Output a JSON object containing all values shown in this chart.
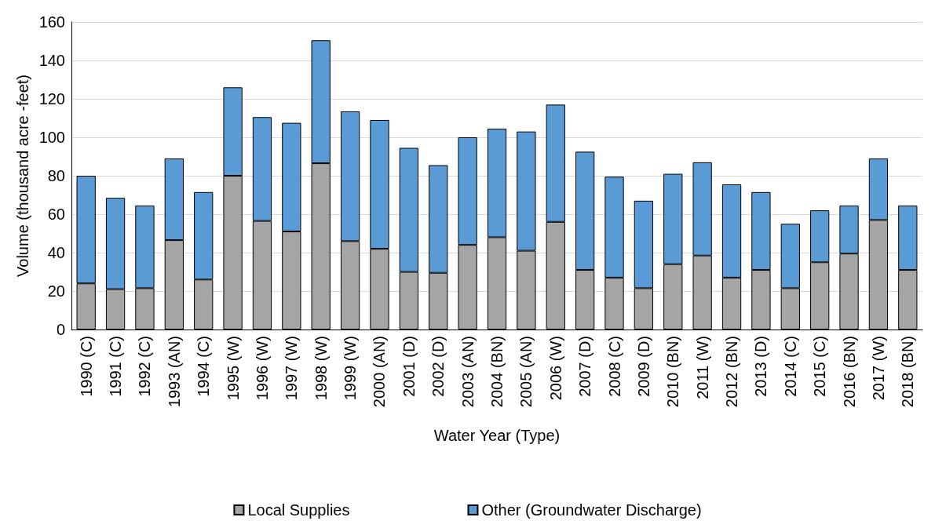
{
  "chart_data": {
    "type": "bar",
    "stacked": true,
    "xlabel": "Water Year (Type)",
    "ylabel": "Volume (thousand acre -feet)",
    "categories": [
      "1990 (C)",
      "1991 (C)",
      "1992 (C)",
      "1993 (AN)",
      "1994 (C)",
      "1995 (W)",
      "1996 (W)",
      "1997 (W)",
      "1998 (W)",
      "1999 (W)",
      "2000 (AN)",
      "2001 (D)",
      "2002 (D)",
      "2003 (AN)",
      "2004 (BN)",
      "2005 (AN)",
      "2006 (W)",
      "2007 (D)",
      "2008 (C)",
      "2009 (D)",
      "2010 (BN)",
      "2011 (W)",
      "2012 (BN)",
      "2013 (D)",
      "2014 (C)",
      "2015 (C)",
      "2016 (BN)",
      "2017 (W)",
      "2018 (BN)"
    ],
    "series": [
      {
        "name": "Local Supplies",
        "color": "#a5a5a5",
        "values": [
          24,
          21,
          21.5,
          46.5,
          26,
          80,
          56.5,
          51,
          86.5,
          46,
          42,
          30,
          29.5,
          44,
          48,
          41,
          56,
          31,
          27,
          21.5,
          34,
          38.5,
          27,
          31,
          21.5,
          35,
          39.5,
          57,
          31
        ]
      },
      {
        "name": "Other (Groundwater Discharge)",
        "color": "#5b9bd5",
        "values": [
          56,
          47.5,
          43,
          42.5,
          45.5,
          46,
          54,
          56.5,
          64,
          67.5,
          67,
          64.5,
          56,
          56,
          56.5,
          62,
          61,
          61.5,
          52.5,
          45.5,
          47,
          48.5,
          48.5,
          40.5,
          33.5,
          27,
          25,
          32,
          33.5
        ]
      }
    ],
    "ylim": [
      0,
      160
    ],
    "yticks": [
      0,
      20,
      40,
      60,
      80,
      100,
      120,
      140,
      160
    ],
    "grid": "y",
    "legend": "bottom"
  }
}
